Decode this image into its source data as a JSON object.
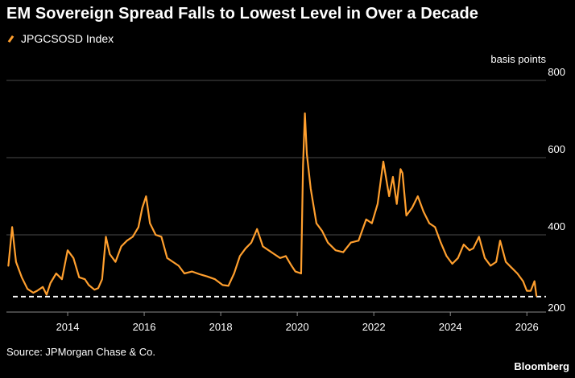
{
  "header": {
    "title": "EM Sovereign Spread Falls to Lowest Level in Over a Decade"
  },
  "legend": {
    "label": "JPGCSOSD Index",
    "color": "#ff9f2e"
  },
  "yunit": "basis points",
  "footer": {
    "source": "Source: JPMorgan Chase & Co.",
    "brand": "Bloomberg"
  },
  "chart_data": {
    "type": "line",
    "title": "EM Sovereign Spread Falls to Lowest Level in Over a Decade",
    "ylabel": "basis points",
    "xlim": [
      2012.4,
      2026.5
    ],
    "ylim": [
      200,
      800
    ],
    "xticks": [
      "2014",
      "2016",
      "2018",
      "2020",
      "2022",
      "2024",
      "2026"
    ],
    "yticks": [
      "200",
      "400",
      "600",
      "800"
    ],
    "grid": "horizontal",
    "legend_position": "top-left",
    "reference_line": {
      "y": 240,
      "style": "dashed",
      "color": "#ffffff"
    },
    "series": [
      {
        "name": "JPGCSOSD Index",
        "color": "#ff9f2e",
        "x": [
          2012.45,
          2012.55,
          2012.65,
          2012.8,
          2012.95,
          2013.1,
          2013.2,
          2013.35,
          2013.45,
          2013.55,
          2013.7,
          2013.85,
          2014.0,
          2014.15,
          2014.3,
          2014.45,
          2014.55,
          2014.7,
          2014.8,
          2014.9,
          2015.0,
          2015.1,
          2015.25,
          2015.4,
          2015.55,
          2015.7,
          2015.85,
          2015.95,
          2016.05,
          2016.15,
          2016.3,
          2016.45,
          2016.6,
          2016.75,
          2016.9,
          2017.05,
          2017.25,
          2017.45,
          2017.65,
          2017.85,
          2018.05,
          2018.2,
          2018.35,
          2018.5,
          2018.65,
          2018.8,
          2018.95,
          2019.1,
          2019.25,
          2019.4,
          2019.55,
          2019.7,
          2019.85,
          2019.95,
          2020.1,
          2020.15,
          2020.2,
          2020.25,
          2020.35,
          2020.5,
          2020.65,
          2020.8,
          2021.0,
          2021.2,
          2021.4,
          2021.6,
          2021.8,
          2021.95,
          2022.1,
          2022.25,
          2022.4,
          2022.5,
          2022.6,
          2022.7,
          2022.75,
          2022.85,
          2023.0,
          2023.15,
          2023.3,
          2023.45,
          2023.6,
          2023.75,
          2023.9,
          2024.05,
          2024.2,
          2024.35,
          2024.5,
          2024.6,
          2024.75,
          2024.9,
          2025.05,
          2025.2,
          2025.3,
          2025.45,
          2025.6,
          2025.75,
          2025.9,
          2026.0,
          2026.1,
          2026.2,
          2026.25
        ],
        "y": [
          320,
          420,
          330,
          290,
          260,
          250,
          255,
          265,
          245,
          275,
          300,
          285,
          360,
          340,
          290,
          285,
          270,
          258,
          262,
          285,
          395,
          350,
          330,
          370,
          385,
          395,
          420,
          470,
          500,
          430,
          400,
          395,
          340,
          330,
          320,
          300,
          305,
          298,
          292,
          285,
          270,
          268,
          300,
          345,
          365,
          380,
          415,
          370,
          360,
          350,
          340,
          345,
          320,
          305,
          300,
          580,
          715,
          610,
          520,
          430,
          410,
          380,
          360,
          355,
          380,
          385,
          440,
          430,
          480,
          590,
          500,
          550,
          480,
          570,
          560,
          450,
          470,
          500,
          460,
          430,
          420,
          380,
          345,
          325,
          340,
          375,
          360,
          365,
          395,
          340,
          320,
          330,
          385,
          330,
          315,
          300,
          280,
          255,
          255,
          280,
          242
        ]
      }
    ]
  }
}
